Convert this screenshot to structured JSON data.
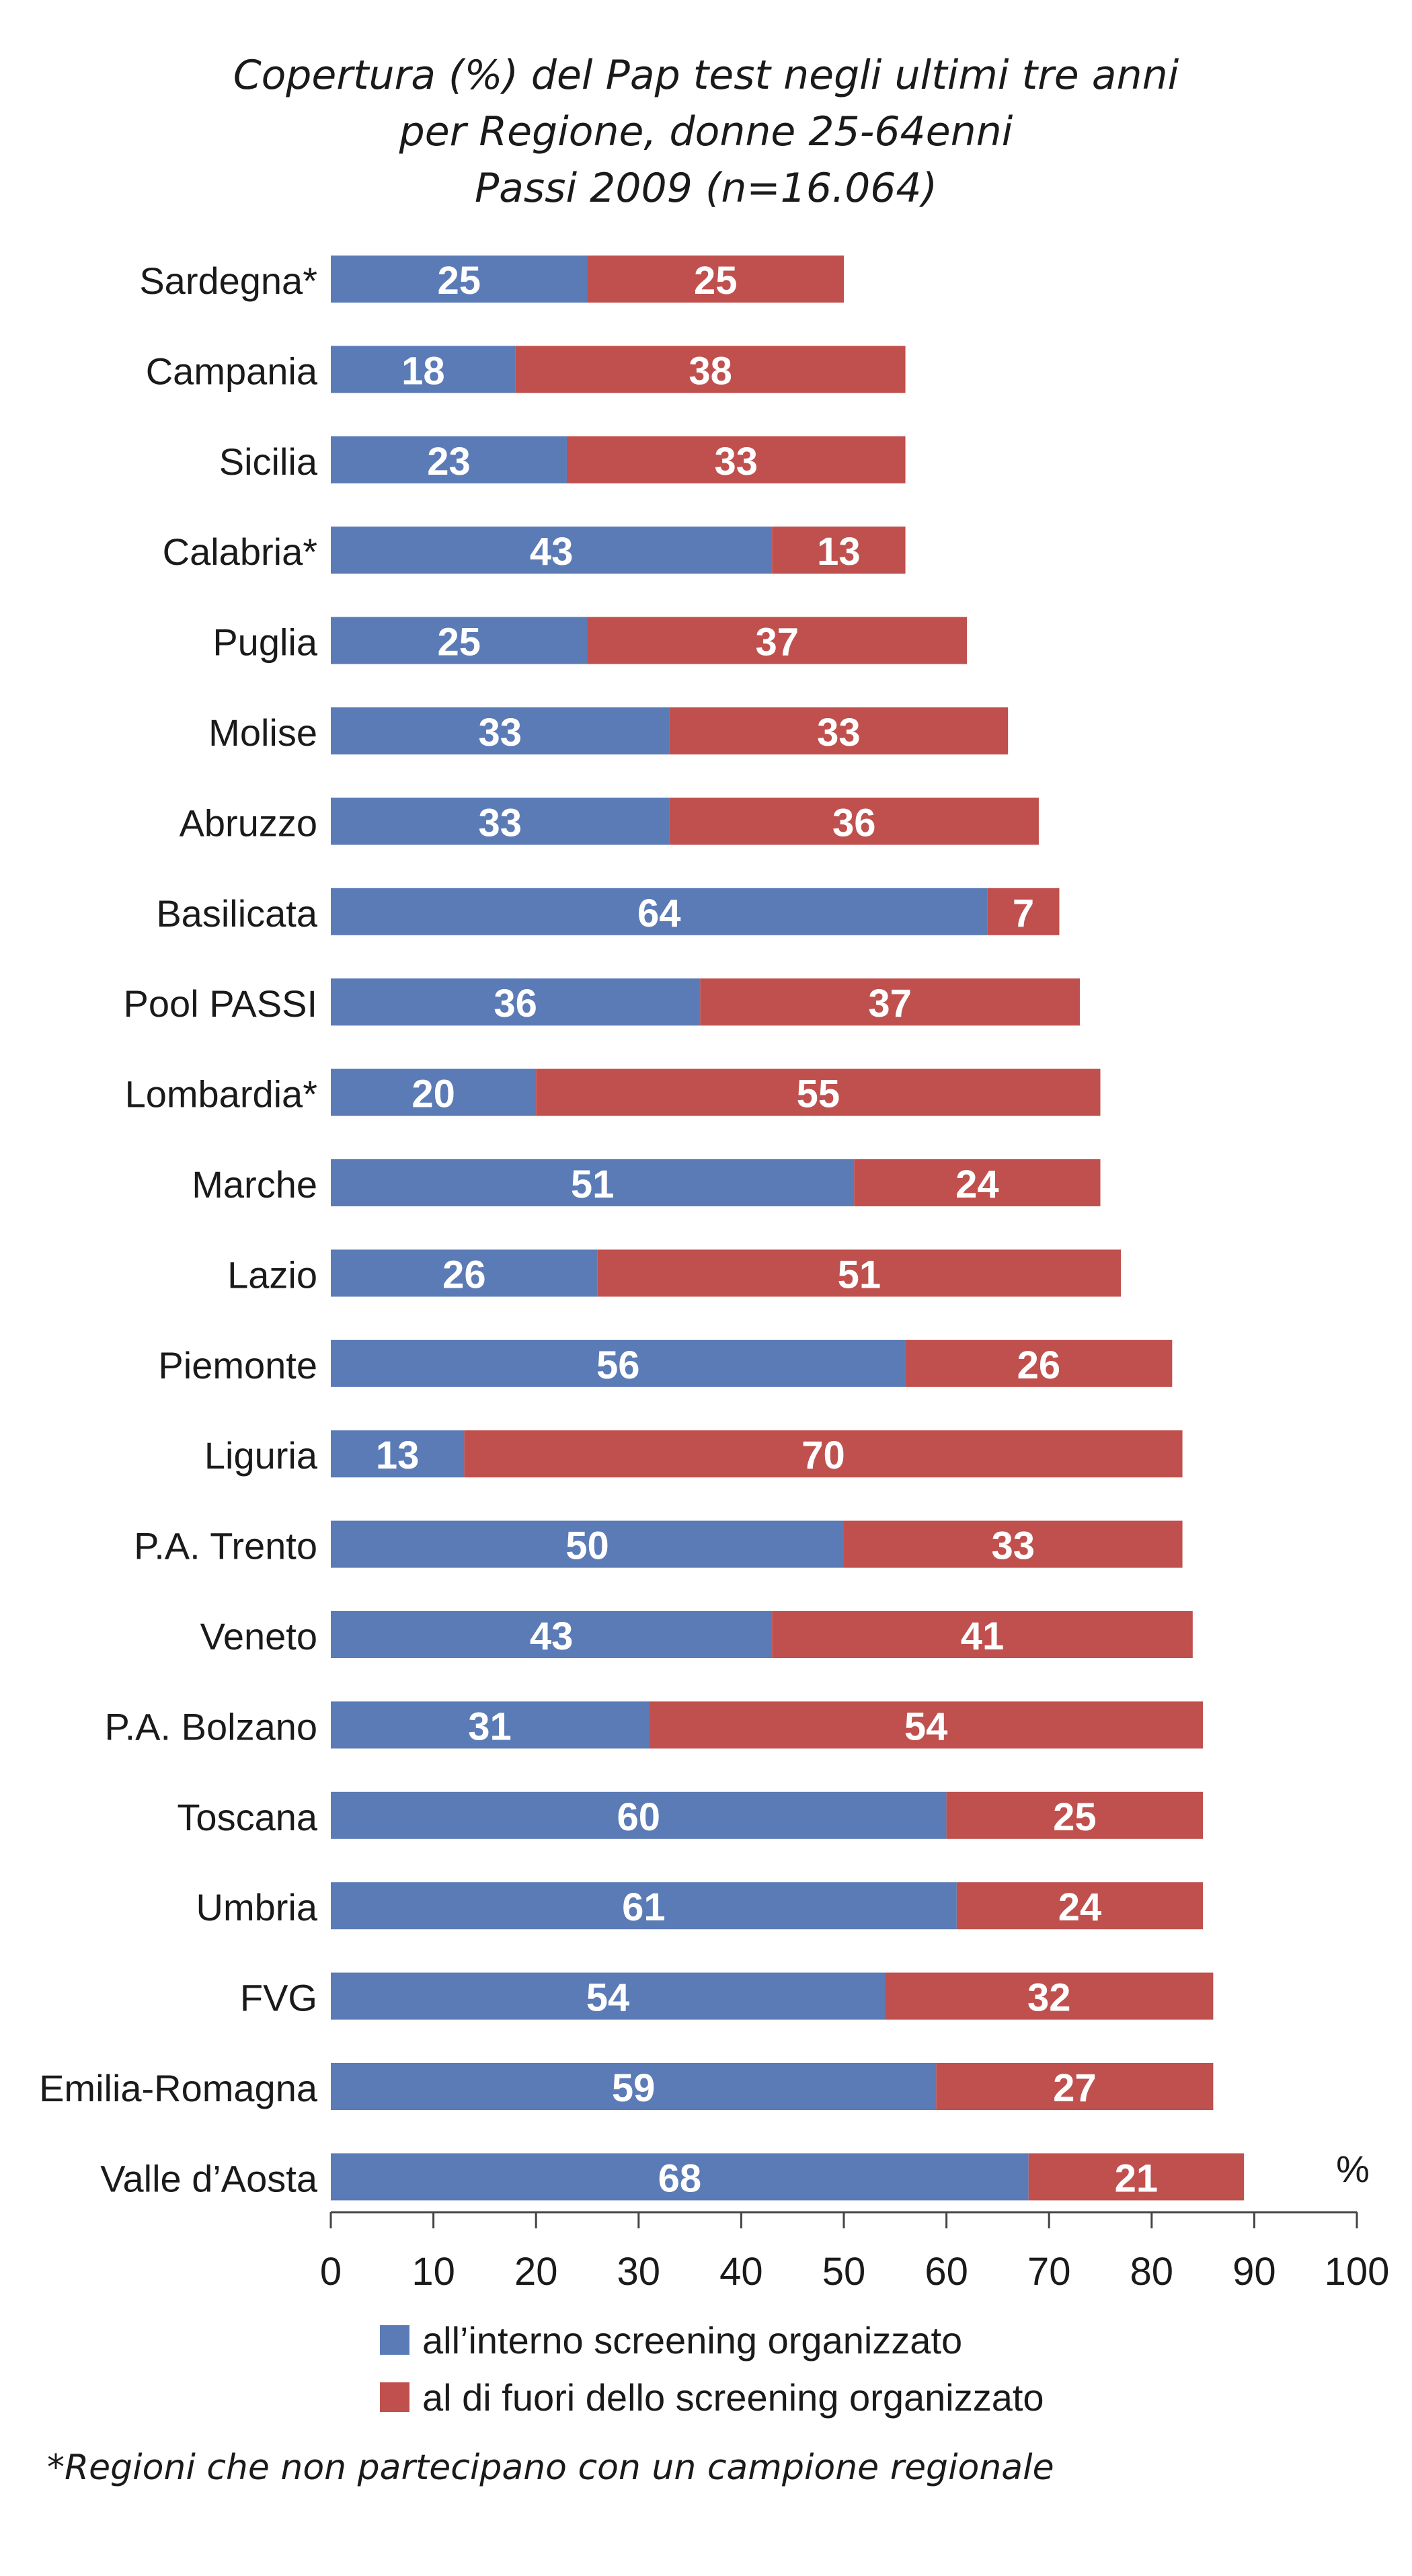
{
  "chart_data": {
    "type": "bar",
    "stacked": true,
    "orientation": "horizontal",
    "title_lines": [
      "Copertura (%) del Pap test negli ultimi tre anni",
      "per Regione, donne 25-64enni",
      "Passi 2009 (n=16.064)"
    ],
    "categories": [
      "Sardegna*",
      "Campania",
      "Sicilia",
      "Calabria*",
      "Puglia",
      "Molise",
      "Abruzzo",
      "Basilicata",
      "Pool PASSI",
      "Lombardia*",
      "Marche",
      "Lazio",
      "Piemonte",
      "Liguria",
      "P.A. Trento",
      "Veneto",
      "P.A. Bolzano",
      "Toscana",
      "Umbria",
      "FVG",
      "Emilia-Romagna",
      "Valle d’Aosta"
    ],
    "series": [
      {
        "name": "all’interno screening organizzato",
        "values": [
          25,
          18,
          23,
          43,
          25,
          33,
          33,
          64,
          36,
          20,
          51,
          26,
          56,
          13,
          50,
          43,
          31,
          60,
          61,
          54,
          59,
          68
        ]
      },
      {
        "name": "al di fuori dello screening organizzato",
        "values": [
          25,
          38,
          33,
          13,
          37,
          33,
          36,
          7,
          37,
          55,
          24,
          51,
          26,
          70,
          33,
          41,
          54,
          25,
          24,
          32,
          27,
          21
        ]
      }
    ],
    "xlim": [
      0,
      100
    ],
    "xticks": [
      "0",
      "10",
      "20",
      "30",
      "40",
      "50",
      "60",
      "70",
      "80",
      "90",
      "100"
    ],
    "unit_label": "%",
    "grid": false,
    "legend_position": "bottom",
    "colors": [
      "#5b7bb6",
      "#c0504d"
    ],
    "footnote": "*Regioni che non partecipano con un campione regionale"
  }
}
